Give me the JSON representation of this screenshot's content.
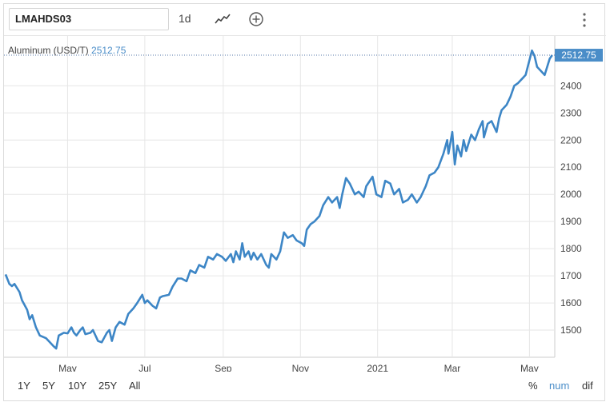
{
  "toolbar": {
    "symbol": "LMAHDS03",
    "interval": "1d",
    "icons": [
      "line-chart-icon",
      "add-circle-icon",
      "more-vertical-icon"
    ]
  },
  "legend": {
    "series_label": "Aluminum (USD/T)",
    "last_value": "2512.75"
  },
  "price_badge": "2512.75",
  "ranges": [
    "1Y",
    "5Y",
    "10Y",
    "25Y",
    "All"
  ],
  "modes": [
    "%",
    "num",
    "dif"
  ],
  "active_mode": "num",
  "colors": {
    "line": "#3d86c6",
    "badge": "#4a8dc8",
    "grid": "#e6e6e6",
    "active_mode": "#4a8dc8"
  },
  "chart_data": {
    "type": "line",
    "title": "",
    "xlabel": "",
    "ylabel": "",
    "ylim": [
      1400,
      2560
    ],
    "y_ticks": [
      1500,
      1600,
      1700,
      1800,
      1900,
      2000,
      2100,
      2200,
      2300,
      2400
    ],
    "x_ticks": [
      "May",
      "Jul",
      "Sep",
      "Nov",
      "2021",
      "Mar",
      "May"
    ],
    "x_tick_dates": [
      "2020-05-01",
      "2020-07-01",
      "2020-09-01",
      "2020-11-01",
      "2021-01-01",
      "2021-03-01",
      "2021-05-01"
    ],
    "xlim": [
      "2020-03-13",
      "2021-05-21"
    ],
    "series": [
      {
        "name": "Aluminum (USD/T)",
        "points": [
          [
            "2020-03-13",
            1705
          ],
          [
            "2020-03-16",
            1670
          ],
          [
            "2020-03-18",
            1662
          ],
          [
            "2020-03-20",
            1670
          ],
          [
            "2020-03-24",
            1640
          ],
          [
            "2020-03-26",
            1610
          ],
          [
            "2020-03-30",
            1575
          ],
          [
            "2020-04-01",
            1540
          ],
          [
            "2020-04-03",
            1555
          ],
          [
            "2020-04-06",
            1510
          ],
          [
            "2020-04-09",
            1480
          ],
          [
            "2020-04-14",
            1470
          ],
          [
            "2020-04-17",
            1455
          ],
          [
            "2020-04-20",
            1440
          ],
          [
            "2020-04-22",
            1432
          ],
          [
            "2020-04-24",
            1480
          ],
          [
            "2020-04-28",
            1490
          ],
          [
            "2020-05-01",
            1488
          ],
          [
            "2020-05-04",
            1510
          ],
          [
            "2020-05-06",
            1490
          ],
          [
            "2020-05-08",
            1480
          ],
          [
            "2020-05-11",
            1500
          ],
          [
            "2020-05-13",
            1510
          ],
          [
            "2020-05-15",
            1485
          ],
          [
            "2020-05-19",
            1490
          ],
          [
            "2020-05-21",
            1500
          ],
          [
            "2020-05-25",
            1460
          ],
          [
            "2020-05-28",
            1455
          ],
          [
            "2020-06-01",
            1490
          ],
          [
            "2020-06-03",
            1500
          ],
          [
            "2020-06-05",
            1460
          ],
          [
            "2020-06-08",
            1510
          ],
          [
            "2020-06-11",
            1530
          ],
          [
            "2020-06-15",
            1520
          ],
          [
            "2020-06-18",
            1560
          ],
          [
            "2020-06-22",
            1580
          ],
          [
            "2020-06-25",
            1600
          ],
          [
            "2020-06-29",
            1630
          ],
          [
            "2020-07-01",
            1600
          ],
          [
            "2020-07-03",
            1610
          ],
          [
            "2020-07-07",
            1590
          ],
          [
            "2020-07-10",
            1580
          ],
          [
            "2020-07-13",
            1620
          ],
          [
            "2020-07-15",
            1625
          ],
          [
            "2020-07-20",
            1630
          ],
          [
            "2020-07-23",
            1660
          ],
          [
            "2020-07-27",
            1690
          ],
          [
            "2020-07-30",
            1690
          ],
          [
            "2020-08-03",
            1680
          ],
          [
            "2020-08-06",
            1720
          ],
          [
            "2020-08-10",
            1710
          ],
          [
            "2020-08-13",
            1740
          ],
          [
            "2020-08-17",
            1730
          ],
          [
            "2020-08-20",
            1770
          ],
          [
            "2020-08-24",
            1760
          ],
          [
            "2020-08-27",
            1780
          ],
          [
            "2020-08-31",
            1770
          ],
          [
            "2020-09-03",
            1755
          ],
          [
            "2020-09-07",
            1780
          ],
          [
            "2020-09-09",
            1750
          ],
          [
            "2020-09-11",
            1790
          ],
          [
            "2020-09-14",
            1760
          ],
          [
            "2020-09-16",
            1820
          ],
          [
            "2020-09-18",
            1770
          ],
          [
            "2020-09-21",
            1790
          ],
          [
            "2020-09-23",
            1760
          ],
          [
            "2020-09-25",
            1785
          ],
          [
            "2020-09-28",
            1760
          ],
          [
            "2020-10-01",
            1780
          ],
          [
            "2020-10-05",
            1740
          ],
          [
            "2020-10-07",
            1730
          ],
          [
            "2020-10-09",
            1780
          ],
          [
            "2020-10-13",
            1760
          ],
          [
            "2020-10-16",
            1790
          ],
          [
            "2020-10-19",
            1860
          ],
          [
            "2020-10-22",
            1840
          ],
          [
            "2020-10-26",
            1850
          ],
          [
            "2020-10-29",
            1830
          ],
          [
            "2020-11-02",
            1820
          ],
          [
            "2020-11-04",
            1810
          ],
          [
            "2020-11-06",
            1870
          ],
          [
            "2020-11-09",
            1890
          ],
          [
            "2020-11-12",
            1900
          ],
          [
            "2020-11-16",
            1920
          ],
          [
            "2020-11-19",
            1960
          ],
          [
            "2020-11-23",
            1990
          ],
          [
            "2020-11-26",
            1970
          ],
          [
            "2020-11-30",
            1990
          ],
          [
            "2020-12-02",
            1950
          ],
          [
            "2020-12-04",
            2000
          ],
          [
            "2020-12-07",
            2060
          ],
          [
            "2020-12-10",
            2040
          ],
          [
            "2020-12-14",
            2000
          ],
          [
            "2020-12-17",
            2010
          ],
          [
            "2020-12-21",
            1990
          ],
          [
            "2020-12-23",
            2030
          ],
          [
            "2020-12-28",
            2065
          ],
          [
            "2020-12-31",
            2000
          ],
          [
            "2021-01-04",
            1990
          ],
          [
            "2021-01-07",
            2050
          ],
          [
            "2021-01-11",
            2040
          ],
          [
            "2021-01-14",
            2000
          ],
          [
            "2021-01-18",
            2020
          ],
          [
            "2021-01-21",
            1970
          ],
          [
            "2021-01-25",
            1980
          ],
          [
            "2021-01-28",
            2000
          ],
          [
            "2021-02-01",
            1970
          ],
          [
            "2021-02-04",
            1990
          ],
          [
            "2021-02-08",
            2030
          ],
          [
            "2021-02-11",
            2070
          ],
          [
            "2021-02-15",
            2080
          ],
          [
            "2021-02-18",
            2100
          ],
          [
            "2021-02-22",
            2150
          ],
          [
            "2021-02-25",
            2200
          ],
          [
            "2021-02-26",
            2150
          ],
          [
            "2021-03-01",
            2230
          ],
          [
            "2021-03-03",
            2110
          ],
          [
            "2021-03-05",
            2180
          ],
          [
            "2021-03-08",
            2140
          ],
          [
            "2021-03-10",
            2200
          ],
          [
            "2021-03-12",
            2160
          ],
          [
            "2021-03-16",
            2220
          ],
          [
            "2021-03-19",
            2200
          ],
          [
            "2021-03-22",
            2240
          ],
          [
            "2021-03-25",
            2270
          ],
          [
            "2021-03-26",
            2210
          ],
          [
            "2021-03-29",
            2260
          ],
          [
            "2021-04-01",
            2270
          ],
          [
            "2021-04-05",
            2230
          ],
          [
            "2021-04-07",
            2280
          ],
          [
            "2021-04-09",
            2310
          ],
          [
            "2021-04-13",
            2330
          ],
          [
            "2021-04-16",
            2360
          ],
          [
            "2021-04-19",
            2400
          ],
          [
            "2021-04-22",
            2410
          ],
          [
            "2021-04-26",
            2430
          ],
          [
            "2021-04-28",
            2440
          ],
          [
            "2021-05-03",
            2530
          ],
          [
            "2021-05-05",
            2510
          ],
          [
            "2021-05-07",
            2470
          ],
          [
            "2021-05-11",
            2450
          ],
          [
            "2021-05-13",
            2440
          ],
          [
            "2021-05-17",
            2500
          ],
          [
            "2021-05-19",
            2512.75
          ]
        ]
      }
    ],
    "grid": true,
    "y_axis_side": "right"
  }
}
